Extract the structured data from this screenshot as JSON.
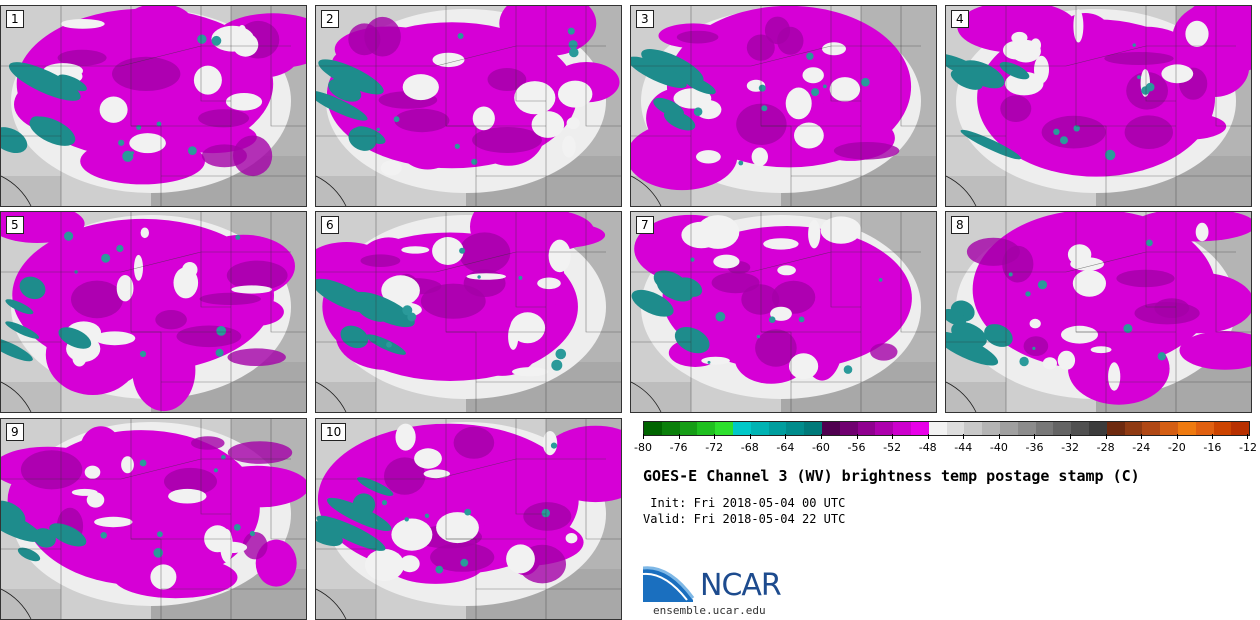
{
  "members": [
    "1",
    "2",
    "3",
    "4",
    "5",
    "6",
    "7",
    "8",
    "9",
    "10"
  ],
  "colorbar": {
    "colors": [
      "#006400",
      "#0b7f0b",
      "#169d16",
      "#1fbf1f",
      "#2ddf2d",
      "#00c8c8",
      "#00b3b3",
      "#009e9e",
      "#008c8c",
      "#007a7a",
      "#500050",
      "#700070",
      "#8f008f",
      "#ad00ad",
      "#cc00cc",
      "#e800e8",
      "#f2f2f2",
      "#dddddd",
      "#c8c8c8",
      "#b4b4b4",
      "#a0a0a0",
      "#8c8c8c",
      "#787878",
      "#646464",
      "#505050",
      "#3c3c3c",
      "#6e2a0f",
      "#8f3a12",
      "#b04815",
      "#d45e13",
      "#ee7a10",
      "#e06010",
      "#cc4400",
      "#b83000"
    ],
    "tick_labels": [
      "-80",
      "-76",
      "-72",
      "-68",
      "-64",
      "-60",
      "-56",
      "-52",
      "-48",
      "-44",
      "-40",
      "-36",
      "-32",
      "-28",
      "-24",
      "-20",
      "-16",
      "-12"
    ]
  },
  "title": "GOES-E Channel 3 (WV) brightness temp postage stamp (C)",
  "init_label": "Init:",
  "init_value": "Fri 2018-05-04 00 UTC",
  "valid_label": "Valid:",
  "valid_value": "Fri 2018-05-04 22 UTC",
  "logo_text": "NCAR",
  "website": "ensemble.ucar.edu"
}
